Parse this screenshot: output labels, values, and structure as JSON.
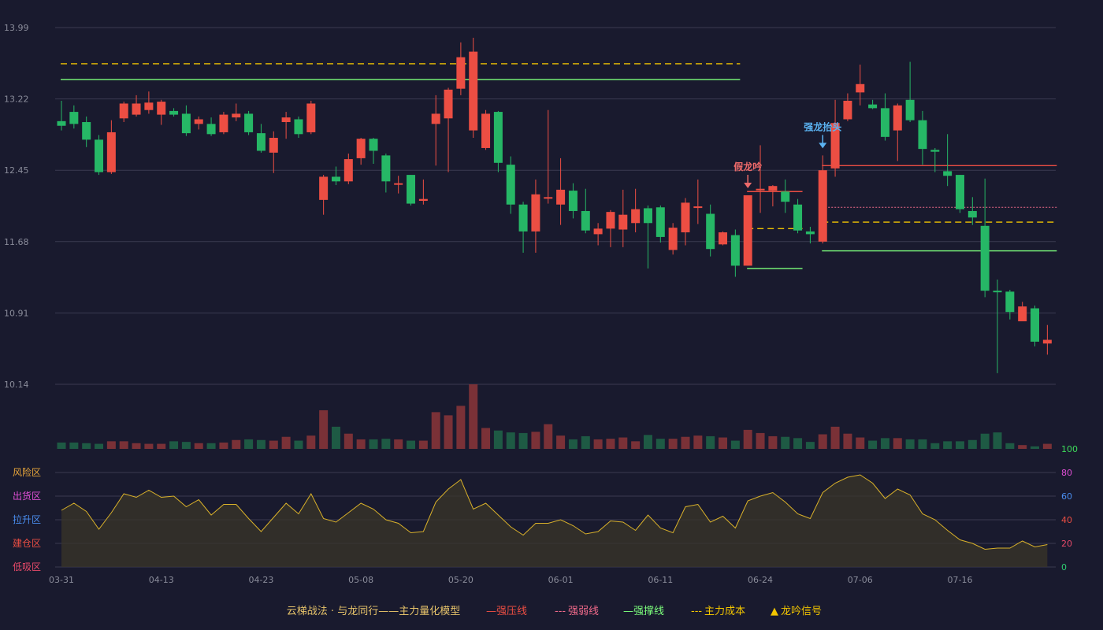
{
  "colors": {
    "background": "#191a2e",
    "up": "#ec4e43",
    "down": "#26b766",
    "volume_up": "#7a3137",
    "volume_down": "#1e5a44",
    "pressure": "#ec4e43",
    "weak": "#f06a8a",
    "support": "#7cff7c",
    "cost": "#f2c500",
    "indicator": "#d9b12a"
  },
  "chart_data": {
    "type": "candlestick",
    "price_axis": {
      "ticks": [
        "13.99",
        "13.22",
        "12.45",
        "11.68",
        "10.91",
        "10.14"
      ],
      "ylim": [
        10.14,
        13.99
      ]
    },
    "x_labels": [
      {
        "i": 0,
        "label": "03-31"
      },
      {
        "i": 8,
        "label": "04-13"
      },
      {
        "i": 16,
        "label": "04-23"
      },
      {
        "i": 24,
        "label": "05-08"
      },
      {
        "i": 32,
        "label": "05-20"
      },
      {
        "i": 40,
        "label": "06-01"
      },
      {
        "i": 48,
        "label": "06-11"
      },
      {
        "i": 56,
        "label": "06-24"
      },
      {
        "i": 64,
        "label": "07-06"
      },
      {
        "i": 72,
        "label": "07-16"
      }
    ],
    "candles": [
      [
        12.98,
        12.93,
        13.2,
        12.88
      ],
      [
        13.08,
        12.95,
        13.15,
        12.9
      ],
      [
        12.97,
        12.78,
        13.03,
        12.7
      ],
      [
        12.78,
        12.43,
        12.83,
        12.4
      ],
      [
        12.43,
        12.86,
        12.99,
        12.41
      ],
      [
        13.01,
        13.17,
        13.19,
        12.97
      ],
      [
        13.05,
        13.17,
        13.26,
        13.03
      ],
      [
        13.1,
        13.18,
        13.3,
        13.06
      ],
      [
        13.05,
        13.19,
        13.21,
        12.94
      ],
      [
        13.09,
        13.05,
        13.12,
        13.03
      ],
      [
        13.06,
        12.85,
        13.15,
        12.82
      ],
      [
        12.95,
        13.0,
        13.03,
        12.89
      ],
      [
        12.95,
        12.84,
        13.02,
        12.82
      ],
      [
        12.86,
        13.05,
        13.08,
        12.84
      ],
      [
        13.02,
        13.06,
        13.17,
        12.98
      ],
      [
        13.06,
        12.86,
        13.09,
        12.83
      ],
      [
        12.85,
        12.66,
        12.95,
        12.64
      ],
      [
        12.64,
        12.8,
        12.87,
        12.42
      ],
      [
        12.97,
        13.02,
        13.08,
        12.79
      ],
      [
        13.0,
        12.84,
        13.03,
        12.8
      ],
      [
        12.86,
        13.17,
        13.2,
        12.84
      ],
      [
        12.13,
        12.38,
        12.4,
        11.97
      ],
      [
        12.38,
        12.33,
        12.49,
        12.29
      ],
      [
        12.33,
        12.57,
        12.63,
        12.3
      ],
      [
        12.58,
        12.79,
        12.8,
        12.51
      ],
      [
        12.79,
        12.66,
        12.8,
        12.52
      ],
      [
        12.61,
        12.33,
        12.63,
        12.21
      ],
      [
        12.3,
        12.31,
        12.39,
        12.2
      ],
      [
        12.4,
        12.09,
        12.4,
        12.07
      ],
      [
        12.12,
        12.14,
        12.35,
        12.08
      ],
      [
        12.95,
        13.06,
        13.26,
        12.5
      ],
      [
        13.01,
        13.32,
        13.34,
        12.43
      ],
      [
        13.33,
        13.67,
        13.83,
        13.26
      ],
      [
        12.88,
        13.73,
        13.88,
        12.8
      ],
      [
        12.69,
        13.06,
        13.1,
        12.67
      ],
      [
        13.08,
        12.53,
        13.09,
        12.43
      ],
      [
        12.51,
        12.08,
        12.6,
        11.98
      ],
      [
        12.08,
        11.79,
        12.11,
        11.56
      ],
      [
        11.79,
        12.19,
        12.35,
        11.56
      ],
      [
        12.15,
        12.16,
        13.1,
        12.09
      ],
      [
        12.08,
        12.24,
        12.58,
        11.86
      ],
      [
        12.23,
        12.01,
        12.31,
        11.93
      ],
      [
        12.01,
        11.8,
        12.25,
        11.77
      ],
      [
        11.76,
        11.82,
        11.88,
        11.64
      ],
      [
        11.82,
        12.0,
        12.02,
        11.62
      ],
      [
        11.81,
        11.97,
        12.24,
        11.62
      ],
      [
        11.88,
        12.03,
        12.25,
        11.78
      ],
      [
        12.04,
        11.88,
        12.07,
        11.39
      ],
      [
        12.05,
        11.73,
        12.07,
        11.67
      ],
      [
        11.59,
        11.83,
        11.88,
        11.54
      ],
      [
        11.78,
        12.1,
        12.15,
        11.64
      ],
      [
        12.05,
        12.06,
        12.35,
        11.87
      ],
      [
        11.98,
        11.6,
        12.08,
        11.52
      ],
      [
        11.65,
        11.78,
        11.79,
        11.64
      ],
      [
        11.75,
        11.42,
        11.81,
        11.3
      ],
      [
        11.42,
        12.18,
        12.18,
        11.42
      ],
      [
        12.24,
        12.25,
        12.72,
        11.99
      ],
      [
        12.23,
        12.28,
        12.29,
        12.06
      ],
      [
        12.22,
        12.11,
        12.35,
        11.99
      ],
      [
        12.08,
        11.8,
        12.14,
        11.77
      ],
      [
        11.79,
        11.76,
        11.84,
        11.66
      ],
      [
        11.68,
        12.45,
        12.61,
        11.66
      ],
      [
        12.47,
        12.96,
        13.21,
        12.38
      ],
      [
        13.0,
        13.2,
        13.28,
        12.98
      ],
      [
        13.29,
        13.38,
        13.59,
        13.15
      ],
      [
        13.16,
        13.12,
        13.21,
        13.11
      ],
      [
        13.12,
        12.81,
        13.28,
        12.77
      ],
      [
        12.88,
        13.15,
        13.17,
        12.55
      ],
      [
        13.21,
        12.99,
        13.62,
        12.97
      ],
      [
        12.99,
        12.68,
        13.09,
        12.51
      ],
      [
        12.67,
        12.65,
        12.69,
        12.43
      ],
      [
        12.44,
        12.39,
        12.84,
        12.28
      ],
      [
        12.4,
        12.03,
        12.4,
        11.99
      ],
      [
        12.01,
        11.94,
        12.16,
        11.86
      ],
      [
        11.85,
        11.15,
        12.36,
        11.08
      ],
      [
        11.15,
        11.14,
        11.27,
        10.26
      ],
      [
        11.14,
        10.92,
        11.16,
        10.84
      ],
      [
        10.82,
        10.98,
        11.03,
        10.83
      ],
      [
        10.96,
        10.6,
        10.99,
        10.55
      ],
      [
        10.58,
        10.62,
        10.78,
        10.46
      ]
    ],
    "volume": [
      10,
      10,
      9,
      8,
      12,
      12,
      9,
      8,
      8,
      12,
      11,
      9,
      9,
      10,
      14,
      15,
      14,
      13,
      19,
      13,
      21,
      61,
      35,
      24,
      15,
      15,
      16,
      15,
      13,
      13,
      58,
      53,
      68,
      102,
      33,
      29,
      26,
      25,
      27,
      39,
      21,
      15,
      20,
      15,
      16,
      18,
      12,
      22,
      16,
      16,
      19,
      21,
      20,
      18,
      13,
      30,
      25,
      20,
      19,
      17,
      11,
      23,
      35,
      24,
      18,
      13,
      17,
      17,
      15,
      15,
      9,
      12,
      12,
      14,
      24,
      26,
      9,
      6,
      4,
      8
    ],
    "volume_max": 102,
    "indicator_axis": {
      "ticks": [
        "100",
        "80",
        "60",
        "40",
        "20",
        "0"
      ],
      "ylim": [
        0,
        100
      ]
    },
    "indicator": [
      48,
      54,
      47,
      32,
      46,
      62,
      59,
      65,
      59,
      60,
      51,
      57,
      44,
      53,
      53,
      41,
      30,
      42,
      54,
      45,
      62,
      41,
      38,
      46,
      54,
      49,
      40,
      37,
      29,
      30,
      55,
      66,
      74,
      49,
      54,
      44,
      34,
      27,
      37,
      37,
      40,
      35,
      28,
      30,
      39,
      38,
      31,
      44,
      33,
      29,
      51,
      53,
      38,
      43,
      33,
      56,
      60,
      63,
      55,
      45,
      41,
      63,
      71,
      76,
      78,
      71,
      58,
      66,
      61,
      45,
      40,
      31,
      23,
      20,
      15,
      16,
      16,
      22,
      17,
      19
    ],
    "zones": [
      {
        "label": "风险区",
        "color": "#e8a63a"
      },
      {
        "label": "出货区",
        "color": "#e04fd6"
      },
      {
        "label": "拉升区",
        "color": "#4a8ef0"
      },
      {
        "label": "建仓区",
        "color": "#ec4e43"
      },
      {
        "label": "低吸区",
        "color": "#e84a6a"
      }
    ],
    "levels": [
      {
        "kind": "cost",
        "value": 13.6,
        "from": 0,
        "to": 54
      },
      {
        "kind": "support",
        "value": 13.43,
        "from": 0,
        "to": 54
      },
      {
        "kind": "pressure",
        "value": 12.22,
        "from": 55,
        "to": 59
      },
      {
        "kind": "cost",
        "value": 11.82,
        "from": 55,
        "to": 59
      },
      {
        "kind": "support",
        "value": 11.39,
        "from": 55,
        "to": 59
      },
      {
        "kind": "pressure",
        "value": 12.5,
        "from": 61,
        "to": 79
      },
      {
        "kind": "weak",
        "value": 12.05,
        "from": 61,
        "to": 79
      },
      {
        "kind": "cost",
        "value": 11.89,
        "from": 61,
        "to": 79
      },
      {
        "kind": "support",
        "value": 11.58,
        "from": 61,
        "to": 79
      }
    ],
    "annotations": [
      {
        "i": 55,
        "label": "假龙吟",
        "color": "#ec6a6a"
      },
      {
        "i": 61,
        "label": "强龙抬头",
        "color": "#5bb3f2"
      }
    ]
  },
  "legend": {
    "title": "云梯战法 · 与龙同行——主力量化模型",
    "items": [
      {
        "symbol": "—",
        "label": "强压线",
        "color": "#ec4e43"
      },
      {
        "symbol": "---",
        "label": "强弱线",
        "color": "#f06a8a"
      },
      {
        "symbol": "—",
        "label": "强撑线",
        "color": "#7cff7c"
      },
      {
        "symbol": "---",
        "label": "主力成本",
        "color": "#f2c500"
      },
      {
        "symbol": "▲",
        "label": "龙吟信号",
        "color": "#f2c500"
      }
    ]
  }
}
